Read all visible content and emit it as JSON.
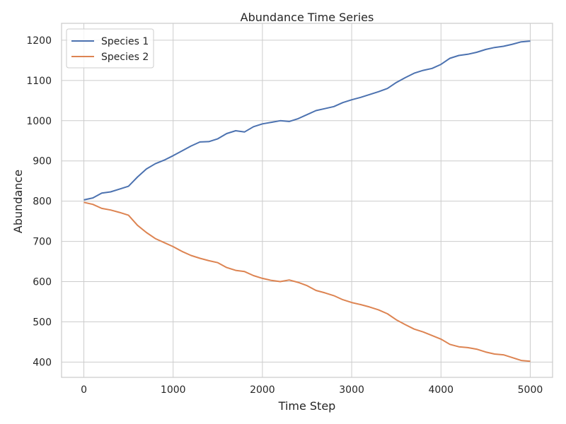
{
  "chart_data": {
    "type": "line",
    "title": "Abundance Time Series",
    "xlabel": "Time Step",
    "ylabel": "Abundance",
    "xlim": [
      -250,
      5250
    ],
    "ylim": [
      362,
      1242
    ],
    "xticks": [
      0,
      1000,
      2000,
      3000,
      4000,
      5000
    ],
    "yticks": [
      400,
      500,
      600,
      700,
      800,
      900,
      1000,
      1100,
      1200
    ],
    "grid": true,
    "legend_position": "top-left",
    "x": [
      0,
      100,
      200,
      300,
      400,
      500,
      600,
      700,
      800,
      900,
      1000,
      1100,
      1200,
      1300,
      1400,
      1500,
      1600,
      1700,
      1800,
      1900,
      2000,
      2100,
      2200,
      2300,
      2400,
      2500,
      2600,
      2700,
      2800,
      2900,
      3000,
      3100,
      3200,
      3300,
      3400,
      3500,
      3600,
      3700,
      3800,
      3900,
      4000,
      4100,
      4200,
      4300,
      4400,
      4500,
      4600,
      4700,
      4800,
      4900,
      5000
    ],
    "series": [
      {
        "name": "Species 1",
        "color": "#4c72b0",
        "values": [
          803,
          808,
          820,
          823,
          830,
          837,
          860,
          880,
          893,
          902,
          913,
          925,
          937,
          947,
          948,
          955,
          968,
          975,
          972,
          985,
          992,
          996,
          1000,
          998,
          1005,
          1015,
          1025,
          1030,
          1035,
          1045,
          1052,
          1058,
          1065,
          1072,
          1080,
          1095,
          1107,
          1118,
          1125,
          1130,
          1140,
          1155,
          1162,
          1165,
          1170,
          1177,
          1182,
          1185,
          1190,
          1196,
          1198
        ]
      },
      {
        "name": "Species 2",
        "color": "#dd8452",
        "values": [
          797,
          792,
          782,
          778,
          772,
          765,
          740,
          722,
          707,
          697,
          687,
          675,
          665,
          658,
          652,
          647,
          635,
          628,
          625,
          615,
          608,
          603,
          600,
          604,
          598,
          590,
          578,
          572,
          565,
          555,
          548,
          543,
          537,
          530,
          520,
          505,
          493,
          482,
          475,
          466,
          457,
          444,
          438,
          436,
          432,
          425,
          420,
          418,
          411,
          404,
          402
        ]
      }
    ]
  }
}
